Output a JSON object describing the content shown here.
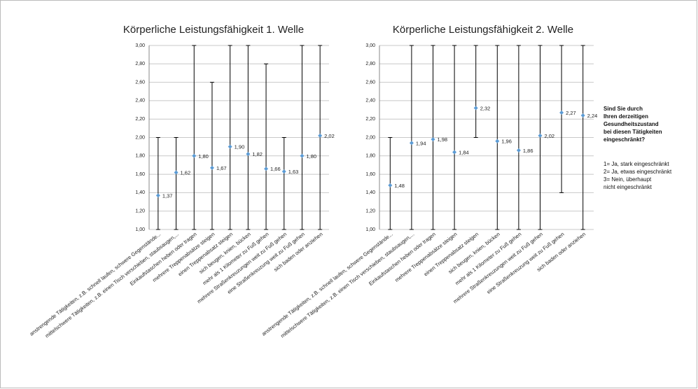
{
  "chart_data": [
    {
      "type": "errorbar",
      "title": "Körperliche Leistungsfähigkeit  1. Welle",
      "categories": [
        "anstrengende Tätigkeiten, z.B. schnell laufen, schwere Gegenstände...",
        "mittelschwere Tätigkeiten, z.B. einen Tisch verschieben, staubsaugen,...",
        "Einkaufstaschen heben oder tragen",
        "mehrere Treppenabsätze steigen",
        "einen Treppenabsatz steigen",
        "sich beugen, knien, bücken",
        "mehr als 1 Kilometer zu Fuß gehen",
        "mehrere Straßenkreuzungen weit zu Fuß gehen",
        "eine Straßenkreuzung weit zu Fuß gehen",
        "sich baden oder anziehen"
      ],
      "values": [
        1.37,
        1.62,
        1.8,
        1.67,
        1.9,
        1.82,
        1.66,
        1.63,
        1.8,
        2.02
      ],
      "value_labels": [
        "1,37",
        "1,62",
        "1,80",
        "1,67",
        "1,90",
        "1,82",
        "1,66",
        "1,63",
        "1,80",
        "2,02"
      ],
      "low": [
        1.0,
        1.0,
        1.0,
        1.0,
        1.0,
        1.0,
        1.0,
        1.0,
        1.0,
        1.0
      ],
      "high": [
        2.0,
        2.0,
        3.0,
        2.6,
        3.0,
        3.0,
        2.8,
        2.0,
        3.0,
        3.0
      ],
      "color": "#5b9bd5",
      "ylim": [
        1.0,
        3.0
      ],
      "yticks": [
        {
          "value": 1.0,
          "label": "1,00"
        },
        {
          "value": 1.2,
          "label": "1,20"
        },
        {
          "value": 1.4,
          "label": "1,40"
        },
        {
          "value": 1.6,
          "label": "1,60"
        },
        {
          "value": 1.8,
          "label": "1,80"
        },
        {
          "value": 2.0,
          "label": "2,00"
        },
        {
          "value": 2.2,
          "label": "2,20"
        },
        {
          "value": 2.4,
          "label": "2,40"
        },
        {
          "value": 2.6,
          "label": "2,60"
        },
        {
          "value": 2.8,
          "label": "2,80"
        },
        {
          "value": 3.0,
          "label": "3,00"
        }
      ],
      "grid": true
    },
    {
      "type": "errorbar",
      "title": "Körperliche Leistungsfähigkeit  2. Welle",
      "categories": [
        "anstrengende Tätigkeiten, z.B. schnell laufen, schwere Gegenstände...",
        "mittelschwere Tätigkeiten, z.B. einen Tisch verschieben, staubsaugen,...",
        "Einkaufstaschen heben oder tragen",
        "mehrere Treppenabsätze steigen",
        "einen Treppenabsatz steigen",
        "sich beugen, knien, bücken",
        "mehr als 1 Kilometer zu Fuß gehen",
        "mehrere Straßenkreuzungen weit zu Fuß gehen",
        "eine Straßenkreuzung weit zu Fuß gehen",
        "sich baden oder anziehen"
      ],
      "values": [
        1.48,
        1.94,
        1.98,
        1.84,
        2.32,
        1.96,
        1.86,
        2.02,
        2.27,
        2.24
      ],
      "value_labels": [
        "1,48",
        "1,94",
        "1,98",
        "1,84",
        "2,32",
        "1,96",
        "1,86",
        "2,02",
        "2,27",
        "2,24"
      ],
      "low": [
        1.0,
        1.0,
        1.0,
        1.0,
        2.0,
        1.0,
        1.0,
        1.0,
        1.4,
        1.0
      ],
      "high": [
        2.0,
        3.0,
        3.0,
        3.0,
        3.0,
        3.0,
        3.0,
        3.0,
        3.0,
        3.0
      ],
      "color": "#5b9bd5",
      "ylim": [
        1.0,
        3.0
      ],
      "yticks": [
        {
          "value": 1.0,
          "label": "1,00"
        },
        {
          "value": 1.2,
          "label": "1,20"
        },
        {
          "value": 1.4,
          "label": "1,40"
        },
        {
          "value": 1.6,
          "label": "1,60"
        },
        {
          "value": 1.8,
          "label": "1,80"
        },
        {
          "value": 2.0,
          "label": "2,00"
        },
        {
          "value": 2.2,
          "label": "2,20"
        },
        {
          "value": 2.4,
          "label": "2,40"
        },
        {
          "value": 2.6,
          "label": "2,60"
        },
        {
          "value": 2.8,
          "label": "2,80"
        },
        {
          "value": 3.0,
          "label": "3,00"
        }
      ],
      "grid": true
    }
  ],
  "annotation": {
    "question": [
      "Sind Sie  durch",
      "Ihren derzeitigen",
      "Gesundheitszustand",
      "bei diesen Tätigkeiten",
      "eingeschränkt?"
    ],
    "scale": [
      "1= Ja, stark eingeschränkt",
      "2= Ja, etwas eingeschränkt",
      "3= Nein, überhaupt",
      "    nicht eingeschränkt"
    ]
  }
}
